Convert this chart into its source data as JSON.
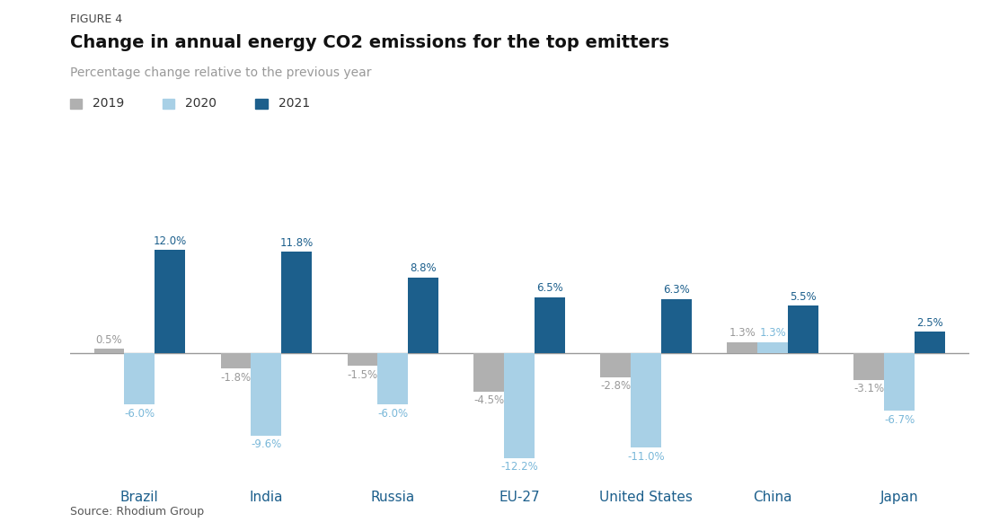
{
  "figure_label": "FIGURE 4",
  "title": "Change in annual energy CO2 emissions for the top emitters",
  "subtitle": "Percentage change relative to the previous year",
  "source": "Source: Rhodium Group",
  "categories": [
    "Brazil",
    "India",
    "Russia",
    "EU-27",
    "United States",
    "China",
    "Japan"
  ],
  "series": {
    "2019": [
      0.5,
      -1.8,
      -1.5,
      -4.5,
      -2.8,
      1.3,
      -3.1
    ],
    "2020": [
      -6.0,
      -9.6,
      -6.0,
      -12.2,
      -11.0,
      1.3,
      -6.7
    ],
    "2021": [
      12.0,
      11.8,
      8.8,
      6.5,
      6.3,
      5.5,
      2.5
    ]
  },
  "colors": {
    "2019": "#b0b0b0",
    "2020": "#a8d0e6",
    "2021": "#1c5f8c"
  },
  "label_colors": {
    "2019_pos": "#999999",
    "2019_neg": "#999999",
    "2020_pos": "#7ab8d9",
    "2020_neg": "#7ab8d9",
    "2021_pos": "#1c5f8c",
    "2021_neg": "#1c5f8c"
  },
  "ylim": [
    -14.5,
    14.5
  ],
  "bar_width": 0.24,
  "background_color": "#ffffff",
  "fig_label_color": "#444444",
  "title_color": "#111111",
  "subtitle_color": "#999999",
  "source_color": "#555555",
  "axis_line_color": "#999999",
  "category_label_color": "#1c5f8c"
}
